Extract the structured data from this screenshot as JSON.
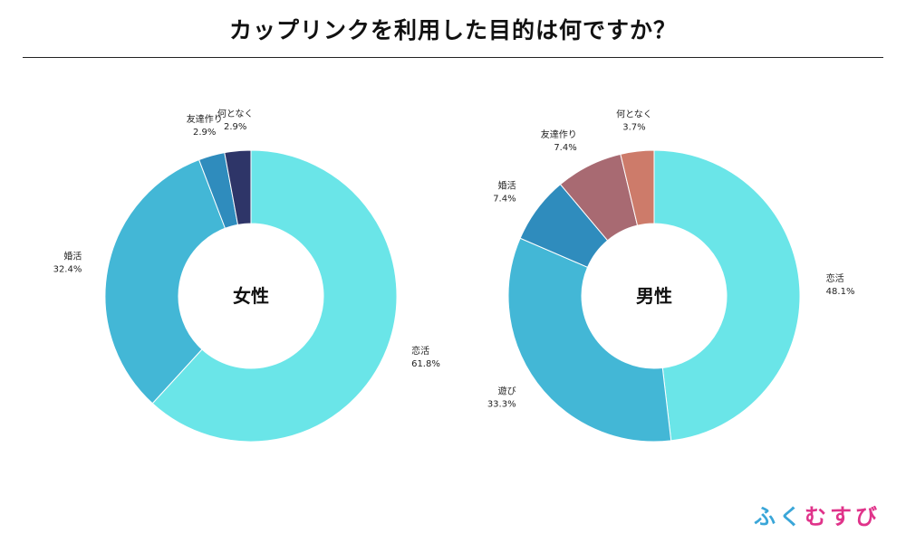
{
  "title": "カップリンクを利用した目的は何ですか？",
  "logo": {
    "part1": "ふく",
    "part2": "むすび"
  },
  "chart_data": [
    {
      "type": "pie",
      "variant": "donut",
      "center_label": "女性",
      "slices": [
        {
          "label": "恋活",
          "value": 61.8,
          "display": "61.8%",
          "color": "#6ae5e8"
        },
        {
          "label": "婚活",
          "value": 32.4,
          "display": "32.4%",
          "color": "#43b7d6"
        },
        {
          "label": "友達作り",
          "value": 2.9,
          "display": "2.9%",
          "color": "#2f8cbd"
        },
        {
          "label": "何となく",
          "value": 2.9,
          "display": "2.9%",
          "color": "#2e3568"
        }
      ]
    },
    {
      "type": "pie",
      "variant": "donut",
      "center_label": "男性",
      "slices": [
        {
          "label": "恋活",
          "value": 48.1,
          "display": "48.1%",
          "color": "#6ae5e8"
        },
        {
          "label": "遊び",
          "value": 33.3,
          "display": "33.3%",
          "color": "#43b7d6"
        },
        {
          "label": "婚活",
          "value": 7.4,
          "display": "7.4%",
          "color": "#2f8cbd"
        },
        {
          "label": "友達作り",
          "value": 7.4,
          "display": "7.4%",
          "color": "#a86a72"
        },
        {
          "label": "何となく",
          "value": 3.7,
          "display": "3.7%",
          "color": "#cd7b6a"
        }
      ]
    }
  ]
}
